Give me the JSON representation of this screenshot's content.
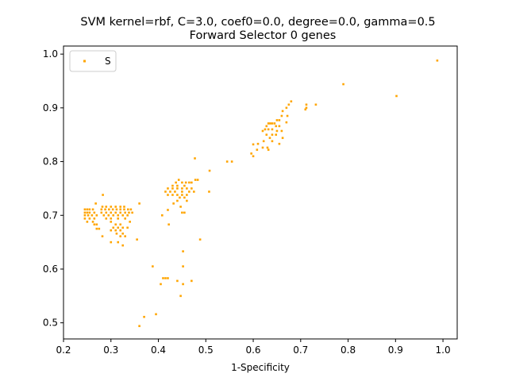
{
  "chart_data": {
    "type": "scatter",
    "title": "SVM kernel=rbf, C=3.0, coef0=0.0, degree=0.0, gamma=0.5",
    "subtitle": "Forward Selector 0 genes",
    "xlabel": "1-Specificity",
    "ylabel": "",
    "xlim": [
      0.2,
      1.03
    ],
    "ylim": [
      0.47,
      1.015
    ],
    "xticks": [
      0.2,
      0.3,
      0.4,
      0.5,
      0.6,
      0.7,
      0.8,
      0.9,
      1.0
    ],
    "xtick_labels": [
      "0.2",
      "0.3",
      "0.4",
      "0.5",
      "0.6",
      "0.7",
      "0.8",
      "0.9",
      "1.0"
    ],
    "yticks": [
      0.5,
      0.6,
      0.7,
      0.8,
      0.9,
      1.0
    ],
    "ytick_labels": [
      "0.5",
      "0.6",
      "0.7",
      "0.8",
      "0.9",
      "1.0"
    ],
    "grid": false,
    "legend_position": "top-left",
    "series": [
      {
        "name": "S",
        "color": "#ffa500",
        "points": [
          [
            0.988,
            0.988
          ],
          [
            0.902,
            0.922
          ],
          [
            0.79,
            0.944
          ],
          [
            0.732,
            0.906
          ],
          [
            0.712,
            0.906
          ],
          [
            0.71,
            0.897
          ],
          [
            0.712,
            0.9
          ],
          [
            0.68,
            0.912
          ],
          [
            0.675,
            0.906
          ],
          [
            0.67,
            0.9
          ],
          [
            0.662,
            0.894
          ],
          [
            0.672,
            0.885
          ],
          [
            0.66,
            0.885
          ],
          [
            0.655,
            0.877
          ],
          [
            0.65,
            0.877
          ],
          [
            0.645,
            0.871
          ],
          [
            0.64,
            0.871
          ],
          [
            0.636,
            0.871
          ],
          [
            0.632,
            0.871
          ],
          [
            0.628,
            0.866
          ],
          [
            0.648,
            0.866
          ],
          [
            0.655,
            0.866
          ],
          [
            0.67,
            0.873
          ],
          [
            0.632,
            0.86
          ],
          [
            0.64,
            0.86
          ],
          [
            0.625,
            0.86
          ],
          [
            0.62,
            0.857
          ],
          [
            0.65,
            0.857
          ],
          [
            0.66,
            0.857
          ],
          [
            0.628,
            0.85
          ],
          [
            0.64,
            0.85
          ],
          [
            0.648,
            0.85
          ],
          [
            0.635,
            0.844
          ],
          [
            0.662,
            0.844
          ],
          [
            0.622,
            0.838
          ],
          [
            0.64,
            0.838
          ],
          [
            0.655,
            0.833
          ],
          [
            0.61,
            0.833
          ],
          [
            0.62,
            0.826
          ],
          [
            0.63,
            0.826
          ],
          [
            0.6,
            0.832
          ],
          [
            0.608,
            0.822
          ],
          [
            0.632,
            0.822
          ],
          [
            0.596,
            0.815
          ],
          [
            0.6,
            0.81
          ],
          [
            0.555,
            0.8
          ],
          [
            0.545,
            0.8
          ],
          [
            0.508,
            0.783
          ],
          [
            0.477,
            0.806
          ],
          [
            0.483,
            0.766
          ],
          [
            0.478,
            0.766
          ],
          [
            0.47,
            0.761
          ],
          [
            0.465,
            0.761
          ],
          [
            0.458,
            0.761
          ],
          [
            0.45,
            0.761
          ],
          [
            0.443,
            0.766
          ],
          [
            0.437,
            0.761
          ],
          [
            0.43,
            0.755
          ],
          [
            0.44,
            0.755
          ],
          [
            0.455,
            0.755
          ],
          [
            0.47,
            0.75
          ],
          [
            0.46,
            0.75
          ],
          [
            0.45,
            0.75
          ],
          [
            0.44,
            0.75
          ],
          [
            0.43,
            0.75
          ],
          [
            0.42,
            0.75
          ],
          [
            0.415,
            0.744
          ],
          [
            0.425,
            0.744
          ],
          [
            0.435,
            0.744
          ],
          [
            0.45,
            0.744
          ],
          [
            0.465,
            0.744
          ],
          [
            0.475,
            0.744
          ],
          [
            0.42,
            0.738
          ],
          [
            0.43,
            0.738
          ],
          [
            0.44,
            0.738
          ],
          [
            0.45,
            0.738
          ],
          [
            0.46,
            0.738
          ],
          [
            0.445,
            0.733
          ],
          [
            0.455,
            0.733
          ],
          [
            0.44,
            0.727
          ],
          [
            0.46,
            0.727
          ],
          [
            0.432,
            0.722
          ],
          [
            0.447,
            0.716
          ],
          [
            0.42,
            0.71
          ],
          [
            0.45,
            0.705
          ],
          [
            0.455,
            0.705
          ],
          [
            0.408,
            0.7
          ],
          [
            0.422,
            0.683
          ],
          [
            0.507,
            0.744
          ],
          [
            0.36,
            0.722
          ],
          [
            0.345,
            0.705
          ],
          [
            0.245,
            0.711
          ],
          [
            0.25,
            0.711
          ],
          [
            0.255,
            0.711
          ],
          [
            0.262,
            0.711
          ],
          [
            0.245,
            0.705
          ],
          [
            0.25,
            0.705
          ],
          [
            0.255,
            0.705
          ],
          [
            0.265,
            0.705
          ],
          [
            0.245,
            0.7
          ],
          [
            0.252,
            0.7
          ],
          [
            0.26,
            0.7
          ],
          [
            0.27,
            0.7
          ],
          [
            0.245,
            0.694
          ],
          [
            0.255,
            0.694
          ],
          [
            0.265,
            0.694
          ],
          [
            0.25,
            0.688
          ],
          [
            0.262,
            0.688
          ],
          [
            0.27,
            0.683
          ],
          [
            0.265,
            0.683
          ],
          [
            0.27,
            0.675
          ],
          [
            0.275,
            0.675
          ],
          [
            0.283,
            0.738
          ],
          [
            0.268,
            0.722
          ],
          [
            0.282,
            0.716
          ],
          [
            0.29,
            0.716
          ],
          [
            0.3,
            0.716
          ],
          [
            0.31,
            0.716
          ],
          [
            0.32,
            0.716
          ],
          [
            0.328,
            0.716
          ],
          [
            0.28,
            0.711
          ],
          [
            0.288,
            0.711
          ],
          [
            0.296,
            0.711
          ],
          [
            0.304,
            0.711
          ],
          [
            0.312,
            0.711
          ],
          [
            0.32,
            0.711
          ],
          [
            0.328,
            0.711
          ],
          [
            0.336,
            0.711
          ],
          [
            0.342,
            0.711
          ],
          [
            0.28,
            0.705
          ],
          [
            0.29,
            0.705
          ],
          [
            0.3,
            0.705
          ],
          [
            0.31,
            0.705
          ],
          [
            0.32,
            0.705
          ],
          [
            0.33,
            0.705
          ],
          [
            0.338,
            0.705
          ],
          [
            0.285,
            0.7
          ],
          [
            0.295,
            0.7
          ],
          [
            0.305,
            0.7
          ],
          [
            0.315,
            0.7
          ],
          [
            0.325,
            0.7
          ],
          [
            0.335,
            0.7
          ],
          [
            0.29,
            0.694
          ],
          [
            0.3,
            0.694
          ],
          [
            0.315,
            0.694
          ],
          [
            0.33,
            0.694
          ],
          [
            0.34,
            0.688
          ],
          [
            0.3,
            0.688
          ],
          [
            0.31,
            0.683
          ],
          [
            0.32,
            0.683
          ],
          [
            0.305,
            0.677
          ],
          [
            0.315,
            0.677
          ],
          [
            0.325,
            0.677
          ],
          [
            0.335,
            0.677
          ],
          [
            0.31,
            0.672
          ],
          [
            0.32,
            0.672
          ],
          [
            0.3,
            0.672
          ],
          [
            0.312,
            0.666
          ],
          [
            0.325,
            0.666
          ],
          [
            0.282,
            0.661
          ],
          [
            0.32,
            0.661
          ],
          [
            0.33,
            0.661
          ],
          [
            0.3,
            0.65
          ],
          [
            0.315,
            0.65
          ],
          [
            0.325,
            0.644
          ],
          [
            0.355,
            0.655
          ],
          [
            0.488,
            0.655
          ],
          [
            0.452,
            0.633
          ],
          [
            0.388,
            0.605
          ],
          [
            0.452,
            0.605
          ],
          [
            0.42,
            0.583
          ],
          [
            0.415,
            0.583
          ],
          [
            0.41,
            0.583
          ],
          [
            0.44,
            0.578
          ],
          [
            0.47,
            0.578
          ],
          [
            0.405,
            0.572
          ],
          [
            0.452,
            0.572
          ],
          [
            0.447,
            0.55
          ],
          [
            0.395,
            0.516
          ],
          [
            0.37,
            0.511
          ],
          [
            0.36,
            0.494
          ]
        ]
      }
    ]
  }
}
